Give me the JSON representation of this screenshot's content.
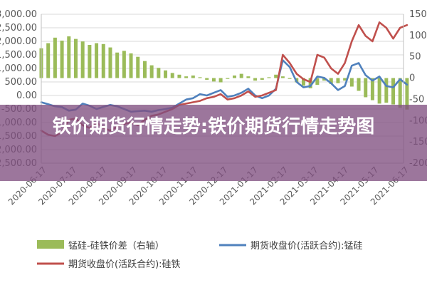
{
  "overlay": {
    "title": "铁价期货行情走势:铁价期货行情走势图"
  },
  "colors": {
    "bar": "#9bbb59",
    "blue": "#4f81bd",
    "red": "#c0504d",
    "grid": "#d9d9d9",
    "axis": "#bfbfbf"
  },
  "chart_data": {
    "type": "bar+line",
    "title": "",
    "x_dates": [
      "2020-06-17",
      "2020-07-17",
      "2020-08-17",
      "2020-09-17",
      "2020-10-17",
      "2020-11-17",
      "2020-12-17",
      "2021-01-17",
      "2021-02-17",
      "2021-03-17",
      "2021-04-17",
      "2021-05-17",
      "2021-06-17"
    ],
    "y_left": {
      "ticks": [
        "3,000.00",
        "2,500.00",
        "2,000.00",
        "1,500.00",
        "1,000.00",
        "500.00",
        "0.00",
        "-500.00",
        "-1,000.00",
        "-1,500.00",
        "-2,000.00",
        "-2,500.00"
      ],
      "range": [
        -2500,
        3000
      ]
    },
    "y_right": {
      "ticks": [
        "150",
        "100",
        "50",
        "0",
        "-50",
        "-100",
        "-150",
        "-200"
      ],
      "range": [
        -200,
        150
      ]
    },
    "series": [
      {
        "name": "锰硅-硅铁价差（右轴）",
        "type": "bar",
        "axis": "right",
        "x": [
          "2020-06-17",
          "2020-06-24",
          "2020-07-01",
          "2020-07-08",
          "2020-07-15",
          "2020-07-22",
          "2020-07-29",
          "2020-08-05",
          "2020-08-12",
          "2020-08-19",
          "2020-08-26",
          "2020-09-02",
          "2020-09-09",
          "2020-09-16",
          "2020-09-23",
          "2020-09-30",
          "2020-10-07",
          "2020-10-14",
          "2020-10-21",
          "2020-10-28",
          "2020-11-04",
          "2020-11-11",
          "2020-11-18",
          "2020-11-25",
          "2020-12-02",
          "2020-12-09",
          "2020-12-16",
          "2020-12-23",
          "2020-12-30",
          "2021-01-06",
          "2021-01-13",
          "2021-01-20",
          "2021-01-27",
          "2021-02-03",
          "2021-02-10",
          "2021-02-17",
          "2021-02-24",
          "2021-03-03",
          "2021-03-10",
          "2021-03-17",
          "2021-03-24",
          "2021-03-31",
          "2021-04-07",
          "2021-04-14",
          "2021-04-21",
          "2021-04-28",
          "2021-05-05",
          "2021-05-12",
          "2021-05-19",
          "2021-05-26",
          "2021-06-02",
          "2021-06-09",
          "2021-06-16",
          "2021-06-23"
        ],
        "values": [
          70,
          82,
          95,
          88,
          98,
          92,
          86,
          78,
          82,
          80,
          72,
          60,
          64,
          58,
          50,
          40,
          30,
          24,
          18,
          12,
          8,
          4,
          6,
          2,
          -4,
          -8,
          -10,
          -2,
          6,
          10,
          4,
          -6,
          -4,
          2,
          8,
          4,
          -2,
          -10,
          -18,
          -24,
          -16,
          -6,
          -14,
          -12,
          -6,
          -20,
          -30,
          -45,
          -52,
          -60,
          -58,
          -62,
          -70,
          -74
        ]
      },
      {
        "name": "期货收盘价(活跃合约):锰硅",
        "type": "line",
        "axis": "left",
        "x": [
          "2020-06-17",
          "2020-06-24",
          "2020-07-01",
          "2020-07-08",
          "2020-07-15",
          "2020-07-22",
          "2020-07-29",
          "2020-08-05",
          "2020-08-12",
          "2020-08-19",
          "2020-08-26",
          "2020-09-02",
          "2020-09-09",
          "2020-09-16",
          "2020-09-23",
          "2020-09-30",
          "2020-10-07",
          "2020-10-14",
          "2020-10-21",
          "2020-10-28",
          "2020-11-04",
          "2020-11-11",
          "2020-11-18",
          "2020-11-25",
          "2020-12-02",
          "2020-12-09",
          "2020-12-16",
          "2020-12-23",
          "2020-12-30",
          "2021-01-06",
          "2021-01-13",
          "2021-01-20",
          "2021-01-27",
          "2021-02-03",
          "2021-02-10",
          "2021-02-17",
          "2021-02-24",
          "2021-03-03",
          "2021-03-10",
          "2021-03-17",
          "2021-03-24",
          "2021-03-31",
          "2021-04-07",
          "2021-04-14",
          "2021-04-21",
          "2021-04-28",
          "2021-05-05",
          "2021-05-12",
          "2021-05-19",
          "2021-05-26",
          "2021-06-02",
          "2021-06-09",
          "2021-06-16",
          "2021-06-23"
        ],
        "values": [
          -250,
          -320,
          -400,
          -430,
          -560,
          -520,
          -300,
          -380,
          -500,
          -420,
          -350,
          -400,
          -500,
          -600,
          -580,
          -560,
          -600,
          -540,
          -500,
          -450,
          -300,
          -150,
          -100,
          50,
          0,
          100,
          200,
          -50,
          0,
          100,
          250,
          0,
          -100,
          0,
          250,
          1300,
          1050,
          500,
          300,
          350,
          700,
          650,
          450,
          200,
          350,
          1100,
          1200,
          750,
          550,
          700,
          350,
          300,
          600,
          400
        ]
      },
      {
        "name": "期货收盘价(活跃合约):硅铁",
        "type": "line",
        "axis": "left",
        "x": [
          "2020-06-17",
          "2020-06-24",
          "2020-07-01",
          "2020-07-08",
          "2020-07-15",
          "2020-07-22",
          "2020-07-29",
          "2020-08-05",
          "2020-08-12",
          "2020-08-19",
          "2020-08-26",
          "2020-09-02",
          "2020-09-09",
          "2020-09-16",
          "2020-09-23",
          "2020-09-30",
          "2020-10-07",
          "2020-10-14",
          "2020-10-21",
          "2020-10-28",
          "2020-11-04",
          "2020-11-11",
          "2020-11-18",
          "2020-11-25",
          "2020-12-02",
          "2020-12-09",
          "2020-12-16",
          "2020-12-23",
          "2020-12-30",
          "2021-01-06",
          "2021-01-13",
          "2021-01-20",
          "2021-01-27",
          "2021-02-03",
          "2021-02-10",
          "2021-02-17",
          "2021-02-24",
          "2021-03-03",
          "2021-03-10",
          "2021-03-17",
          "2021-03-24",
          "2021-03-31",
          "2021-04-07",
          "2021-04-14",
          "2021-04-21",
          "2021-04-28",
          "2021-05-05",
          "2021-05-12",
          "2021-05-19",
          "2021-05-26",
          "2021-06-02",
          "2021-06-09",
          "2021-06-16",
          "2021-06-23"
        ],
        "values": [
          -1300,
          -1450,
          -1500,
          -1350,
          -900,
          -850,
          -1100,
          -1200,
          -1000,
          -1200,
          -1300,
          -1150,
          -1050,
          -1000,
          -1100,
          -900,
          -750,
          -700,
          -600,
          -500,
          -350,
          -300,
          -250,
          -200,
          -100,
          -50,
          50,
          -150,
          -100,
          0,
          150,
          -50,
          0,
          100,
          200,
          1500,
          1200,
          800,
          600,
          500,
          1500,
          1400,
          1000,
          800,
          1200,
          2000,
          2600,
          2200,
          2000,
          2700,
          2500,
          2100,
          2500,
          2600
        ]
      }
    ],
    "legend": {
      "position": "bottom",
      "entries": [
        "锰硅-硅铁价差（右轴）",
        "期货收盘价(活跃合约):锰硅",
        "期货收盘价(活跃合约):硅铁"
      ]
    },
    "grid": true
  }
}
